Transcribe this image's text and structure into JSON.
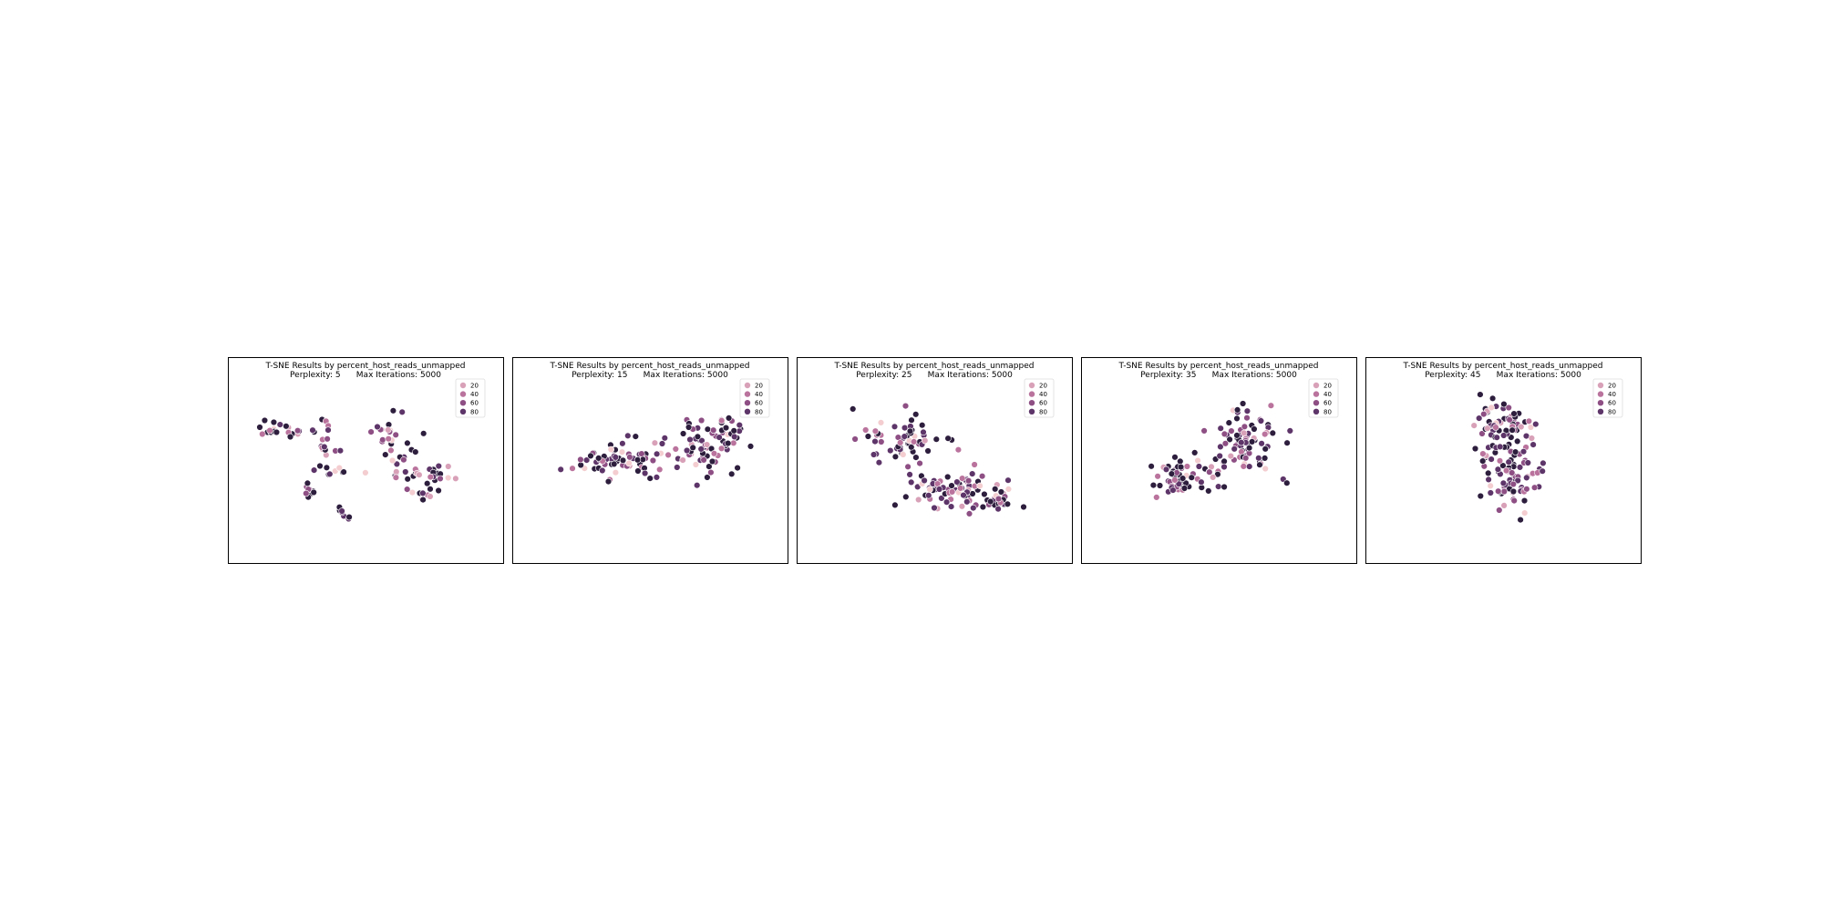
{
  "figure": {
    "colormap": [
      "#f3cdd0",
      "#d9a1b8",
      "#b9739c",
      "#8e4f85",
      "#5e3569",
      "#2d1e3e"
    ],
    "frame_color": "#000000",
    "point_edge_color": "#ffffff"
  },
  "chart_data": [
    {
      "type": "scatter",
      "title": "T-SNE Results by percent_host_reads_unmapped",
      "subtitle": "Perplexity: 5      Max Iterations: 5000",
      "perplexity": 5,
      "max_iterations": 5000,
      "xlim": [
        -50,
        50
      ],
      "ylim": [
        -50,
        50
      ],
      "legend": {
        "placement": "upper right",
        "labels": [
          "20",
          "40",
          "60",
          "80"
        ]
      },
      "clusters": [
        {
          "cx": -30,
          "cy": 14,
          "sx": 5,
          "sy": 2.5,
          "n": 20
        },
        {
          "cx": -17,
          "cy": 16,
          "sx": 2.5,
          "sy": 1.5,
          "n": 6
        },
        {
          "cx": -14,
          "cy": 6,
          "sx": 2.5,
          "sy": 2.5,
          "n": 11
        },
        {
          "cx": -13,
          "cy": -5,
          "sx": 2.5,
          "sy": 1.5,
          "n": 9
        },
        {
          "cx": -21,
          "cy": -15,
          "sx": 2,
          "sy": 2,
          "n": 9
        },
        {
          "cx": -8,
          "cy": -26,
          "sx": 2,
          "sy": 1.5,
          "n": 7
        },
        {
          "cx": 10,
          "cy": 10,
          "sx": 4,
          "sy": 8,
          "n": 30
        },
        {
          "cx": 19,
          "cy": -7,
          "sx": 7,
          "sy": 3,
          "n": 26
        },
        {
          "cx": 23,
          "cy": -17,
          "sx": 2.5,
          "sy": 2,
          "n": 10
        }
      ]
    },
    {
      "type": "scatter",
      "title": "T-SNE Results by percent_host_reads_unmapped",
      "subtitle": "Perplexity: 15      Max Iterations: 5000",
      "perplexity": 15,
      "max_iterations": 5000,
      "xlim": [
        -50,
        50
      ],
      "ylim": [
        -50,
        50
      ],
      "legend": {
        "placement": "upper right",
        "labels": [
          "20",
          "40",
          "60",
          "80"
        ]
      },
      "clusters": [
        {
          "cx": -10,
          "cy": 0,
          "sx": 10,
          "sy": 5,
          "n": 70
        },
        {
          "cx": 20,
          "cy": 5,
          "sx": 7,
          "sy": 7,
          "n": 60
        },
        {
          "cx": 29,
          "cy": 16,
          "sx": 3,
          "sy": 3,
          "n": 15
        }
      ]
    },
    {
      "type": "scatter",
      "title": "T-SNE Results by percent_host_reads_unmapped",
      "subtitle": "Perplexity: 25      Max Iterations: 5000",
      "perplexity": 25,
      "max_iterations": 5000,
      "xlim": [
        -50,
        50
      ],
      "ylim": [
        -50,
        50
      ],
      "legend": {
        "placement": "upper right",
        "labels": [
          "20",
          "40",
          "60",
          "80"
        ]
      },
      "clusters": [
        {
          "cx": -12,
          "cy": 10,
          "sx": 7,
          "sy": 6,
          "n": 60
        },
        {
          "cx": 10,
          "cy": -17,
          "sx": 10,
          "sy": 5,
          "n": 80
        },
        {
          "cx": 23,
          "cy": -20,
          "sx": 3,
          "sy": 3,
          "n": 15
        }
      ]
    },
    {
      "type": "scatter",
      "title": "T-SNE Results by percent_host_reads_unmapped",
      "subtitle": "Perplexity: 35      Max Iterations: 5000",
      "perplexity": 35,
      "max_iterations": 5000,
      "xlim": [
        -50,
        50
      ],
      "ylim": [
        -50,
        50
      ],
      "legend": {
        "placement": "upper right",
        "labels": [
          "20",
          "40",
          "60",
          "80"
        ]
      },
      "clusters": [
        {
          "cx": -12,
          "cy": -9,
          "sx": 7,
          "sy": 4,
          "n": 60
        },
        {
          "cx": 10,
          "cy": 8,
          "sx": 6,
          "sy": 8,
          "n": 80
        },
        {
          "cx": 7,
          "cy": 24,
          "sx": 2,
          "sy": 1,
          "n": 4
        }
      ]
    },
    {
      "type": "scatter",
      "title": "T-SNE Results by percent_host_reads_unmapped",
      "subtitle": "Perplexity: 45      Max Iterations: 5000",
      "perplexity": 45,
      "max_iterations": 5000,
      "xlim": [
        -50,
        50
      ],
      "ylim": [
        -50,
        50
      ],
      "legend": {
        "placement": "upper right",
        "labels": [
          "20",
          "40",
          "60",
          "80"
        ]
      },
      "clusters": [
        {
          "cx": 0,
          "cy": 18,
          "sx": 6,
          "sy": 6,
          "n": 60
        },
        {
          "cx": 3,
          "cy": -8,
          "sx": 5,
          "sy": 9,
          "n": 80
        },
        {
          "cx": -6,
          "cy": 2,
          "sx": 1,
          "sy": 3,
          "n": 3
        }
      ]
    }
  ]
}
